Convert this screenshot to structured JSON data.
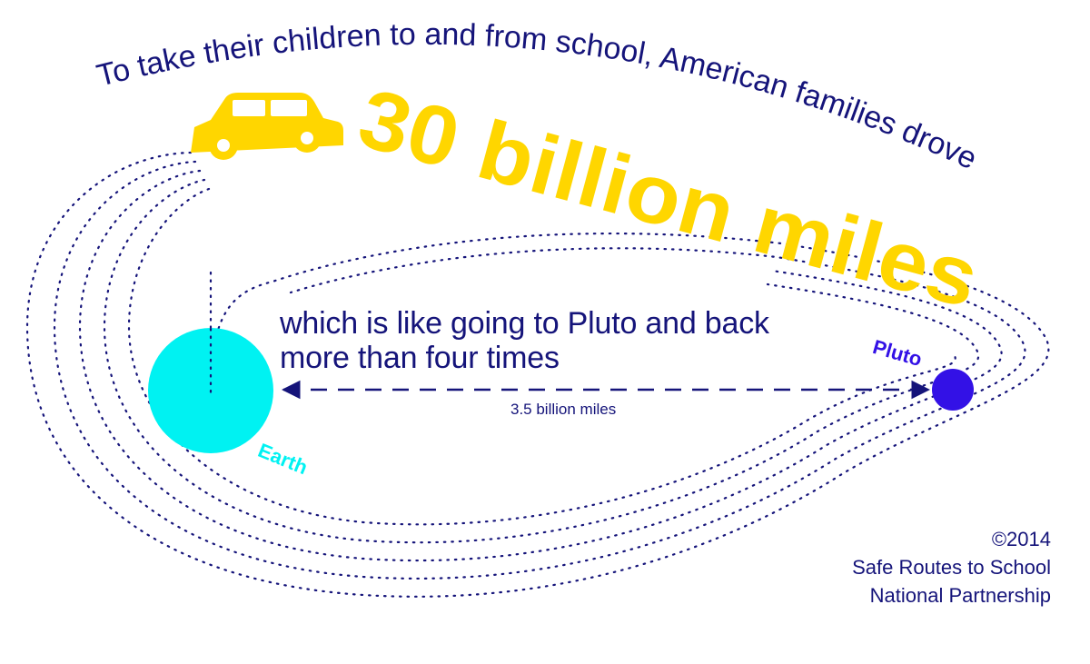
{
  "headline": {
    "intro": "To take their children to and from school, American families drove",
    "figure": "30 billion miles"
  },
  "comparison": {
    "line1": "which is like going to Pluto and back",
    "line2": "more than four times"
  },
  "distance_label": "3.5 billion miles",
  "planets": {
    "earth": {
      "label": "Earth",
      "color": "#00f2f2"
    },
    "pluto": {
      "label": "Pluto",
      "color": "#3311e6"
    }
  },
  "credit": {
    "year": "©2014",
    "org_line1": "Safe Routes to School",
    "org_line2": "National Partnership"
  },
  "colors": {
    "navy": "#15147a",
    "yellow": "#ffd600",
    "orbit_dots": "#15147a",
    "background": "#ffffff"
  },
  "icons": [
    "car-icon",
    "earth-planet",
    "pluto-planet",
    "double-arrow"
  ]
}
